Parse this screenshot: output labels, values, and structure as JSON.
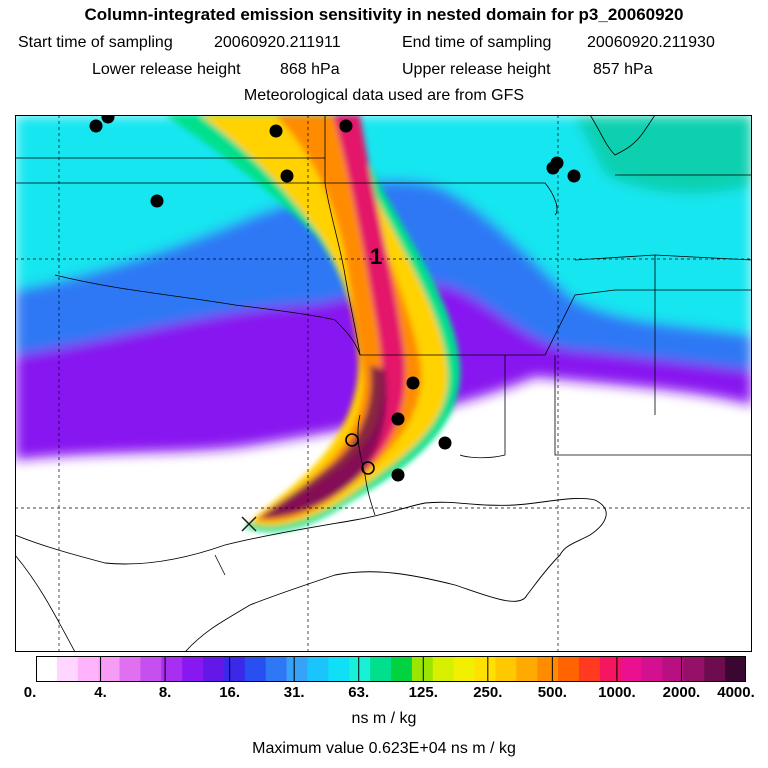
{
  "header": {
    "title": "Column-integrated emission sensitivity in nested domain for p3_20060920",
    "start_label": "Start time of sampling",
    "start_value": "20060920.211911",
    "end_label": "End time of sampling",
    "end_value": "20060920.211930",
    "lower_label": "Lower release height",
    "lower_value": "868 hPa",
    "upper_label": "Upper release height",
    "upper_value": "857 hPa",
    "met_line": "Meteorological data used are from GFS"
  },
  "map": {
    "release_marker_label": "1",
    "colors": {
      "plume_core": "#e3136b",
      "plume_mid": "#ff8c00",
      "plume_outer": "#ffd200",
      "background_north": "#18e6f0",
      "background_mid": "#9b20ee",
      "background_south": "#ffffff"
    }
  },
  "colorbar": {
    "tick_labels": [
      "0.",
      "4.",
      "8.",
      "16.",
      "31.",
      "63.",
      "125.",
      "250.",
      "500.",
      "1000.",
      "2000.",
      "4000."
    ],
    "colors": [
      "#ffffff",
      "#ffd6ff",
      "#ffb3fb",
      "#f59cf5",
      "#e070f0",
      "#c64ff0",
      "#a82ff2",
      "#8818f0",
      "#6418e8",
      "#3b28e8",
      "#2850f0",
      "#2f78f5",
      "#36a2f8",
      "#1bc4fa",
      "#10e0f5",
      "#18f0d8",
      "#00e08c",
      "#00d240",
      "#9ae600",
      "#d6f000",
      "#f2f000",
      "#ffe000",
      "#ffc800",
      "#ffaa00",
      "#ff8c00",
      "#ff6400",
      "#ff3a20",
      "#f51560",
      "#ea1090",
      "#d31090",
      "#b81080",
      "#951068",
      "#6d0d50",
      "#3c0632"
    ],
    "units": "ns m / kg",
    "max_value_text": "Maximum value  0.623E+04 ns m / kg"
  }
}
